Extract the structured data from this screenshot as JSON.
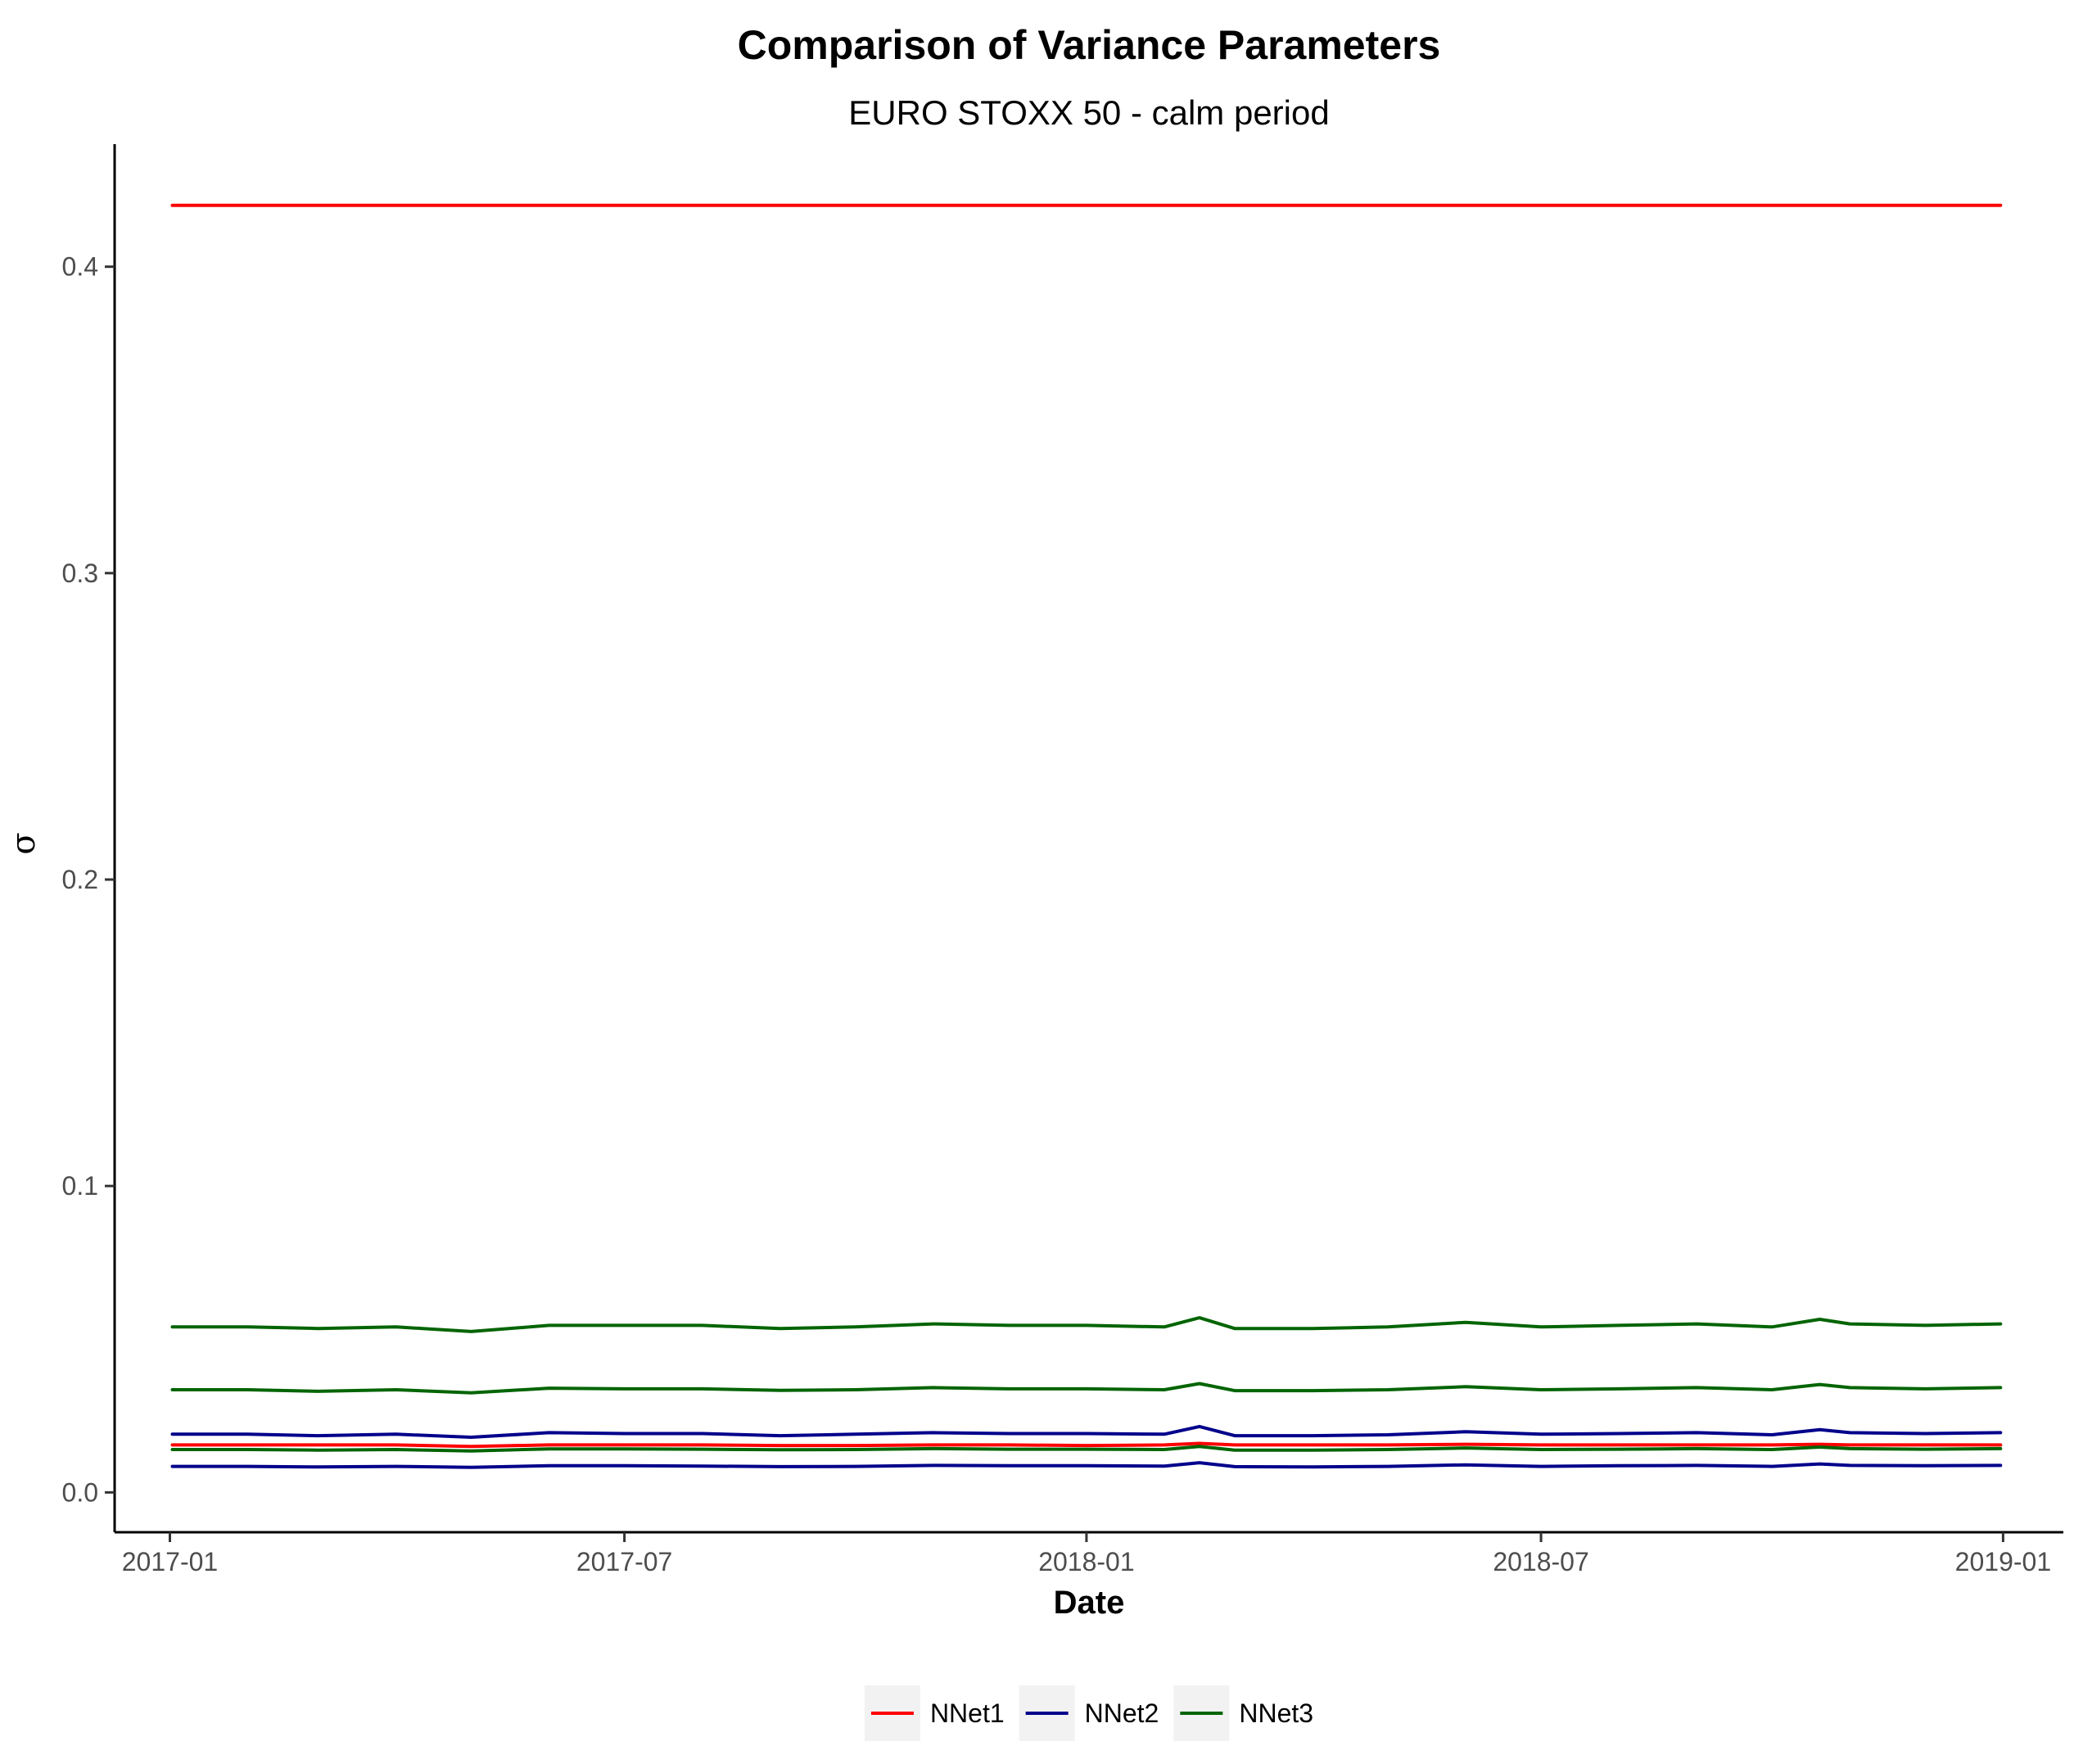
{
  "chart_data": {
    "type": "line",
    "title": "Comparison of Variance Parameters",
    "subtitle": "EURO STOXX 50 - calm period",
    "xlabel": "Date",
    "ylabel": "σ",
    "x_range": [
      "2016-12-10",
      "2019-01-25"
    ],
    "x_ticks": [
      "2017-01",
      "2017-07",
      "2018-01",
      "2018-07",
      "2019-01"
    ],
    "ylim": [
      -0.013,
      0.44
    ],
    "y_ticks": [
      "0.0",
      "0.1",
      "0.2",
      "0.3",
      "0.4"
    ],
    "grid": false,
    "legend_position": "bottom",
    "x": [
      "2017-01-02",
      "2017-02-01",
      "2017-03-01",
      "2017-04-01",
      "2017-05-01",
      "2017-06-01",
      "2017-07-01",
      "2017-08-01",
      "2017-09-01",
      "2017-10-01",
      "2017-11-01",
      "2017-12-01",
      "2018-01-01",
      "2018-02-01",
      "2018-02-15",
      "2018-03-01",
      "2018-04-01",
      "2018-05-01",
      "2018-06-01",
      "2018-07-01",
      "2018-08-01",
      "2018-09-01",
      "2018-10-01",
      "2018-10-20",
      "2018-11-01",
      "2018-12-01",
      "2018-12-31"
    ],
    "series": [
      {
        "name": "NNet1",
        "color": "#ff0000",
        "values": [
          0.42,
          0.42,
          0.42,
          0.42,
          0.42,
          0.42,
          0.42,
          0.42,
          0.42,
          0.42,
          0.42,
          0.42,
          0.42,
          0.42,
          0.42,
          0.42,
          0.42,
          0.42,
          0.42,
          0.42,
          0.42,
          0.42,
          0.42,
          0.42,
          0.42,
          0.42,
          0.42
        ]
      },
      {
        "name": "NNet1",
        "color": "#ff0000",
        "values": [
          0.0155,
          0.0155,
          0.0155,
          0.0155,
          0.015,
          0.0155,
          0.0155,
          0.0155,
          0.0153,
          0.0153,
          0.0155,
          0.0155,
          0.0153,
          0.0155,
          0.016,
          0.0155,
          0.0155,
          0.0155,
          0.0157,
          0.0155,
          0.0155,
          0.0155,
          0.0155,
          0.0157,
          0.0155,
          0.0155,
          0.0155
        ]
      },
      {
        "name": "NNet2",
        "color": "#00008b",
        "values": [
          0.019,
          0.019,
          0.0185,
          0.019,
          0.018,
          0.0195,
          0.0192,
          0.0192,
          0.0185,
          0.019,
          0.0195,
          0.0192,
          0.0192,
          0.019,
          0.0215,
          0.0185,
          0.0185,
          0.0188,
          0.0198,
          0.019,
          0.0192,
          0.0195,
          0.0188,
          0.0205,
          0.0195,
          0.0192,
          0.0195
        ]
      },
      {
        "name": "NNet2",
        "color": "#00008b",
        "values": [
          0.0085,
          0.0085,
          0.0083,
          0.0085,
          0.0082,
          0.0087,
          0.0087,
          0.0086,
          0.0084,
          0.0085,
          0.0088,
          0.0087,
          0.0087,
          0.0086,
          0.0097,
          0.0084,
          0.0083,
          0.0085,
          0.009,
          0.0085,
          0.0087,
          0.0088,
          0.0085,
          0.0093,
          0.0088,
          0.0087,
          0.0088
        ]
      },
      {
        "name": "NNet3",
        "color": "#006400",
        "values": [
          0.054,
          0.054,
          0.0535,
          0.054,
          0.0525,
          0.0545,
          0.0545,
          0.0545,
          0.0535,
          0.054,
          0.055,
          0.0545,
          0.0545,
          0.054,
          0.057,
          0.0535,
          0.0535,
          0.054,
          0.0555,
          0.054,
          0.0545,
          0.055,
          0.054,
          0.0565,
          0.055,
          0.0545,
          0.055
        ]
      },
      {
        "name": "NNet3",
        "color": "#006400",
        "values": [
          0.0335,
          0.0335,
          0.033,
          0.0335,
          0.0325,
          0.034,
          0.0338,
          0.0338,
          0.0333,
          0.0335,
          0.0342,
          0.0338,
          0.0338,
          0.0335,
          0.0355,
          0.0332,
          0.0332,
          0.0335,
          0.0345,
          0.0335,
          0.0338,
          0.0342,
          0.0335,
          0.0352,
          0.0342,
          0.0338,
          0.0342
        ]
      },
      {
        "name": "NNet3",
        "color": "#006400",
        "values": [
          0.014,
          0.014,
          0.0138,
          0.014,
          0.0135,
          0.0142,
          0.0142,
          0.0141,
          0.0139,
          0.014,
          0.0143,
          0.0141,
          0.0141,
          0.014,
          0.015,
          0.0138,
          0.0138,
          0.014,
          0.0145,
          0.014,
          0.0141,
          0.0143,
          0.014,
          0.0148,
          0.0143,
          0.0141,
          0.0143
        ]
      }
    ],
    "legend": [
      {
        "label": "NNet1",
        "color": "#ff0000"
      },
      {
        "label": "NNet2",
        "color": "#00008b"
      },
      {
        "label": "NNet3",
        "color": "#006400"
      }
    ]
  }
}
